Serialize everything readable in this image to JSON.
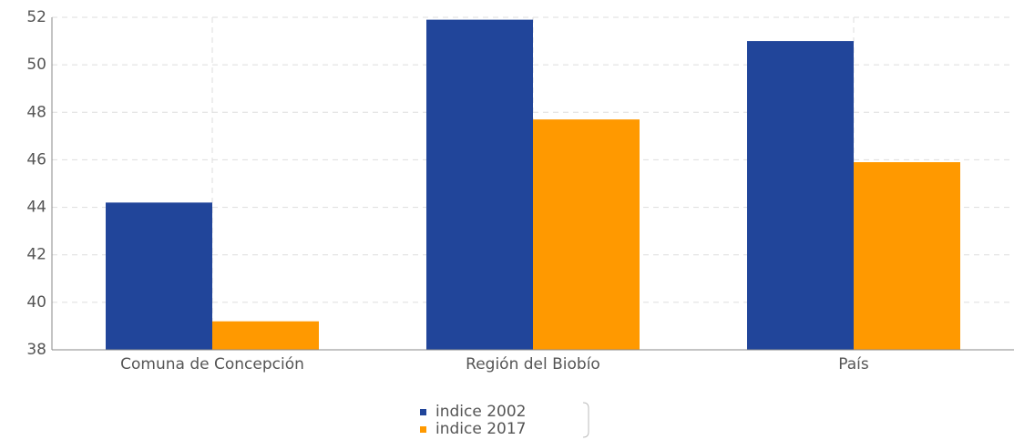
{
  "chart_data": {
    "type": "bar",
    "categories": [
      "Comuna de Concepción",
      "Región del Biobío",
      "País"
    ],
    "series": [
      {
        "name": "indice 2002",
        "color": "#21459a",
        "values": [
          44.2,
          51.9,
          51.0
        ]
      },
      {
        "name": "indice 2017",
        "color": "#ff9900",
        "values": [
          39.2,
          47.7,
          45.9
        ]
      }
    ],
    "ylim": [
      38,
      52
    ],
    "yticks": [
      38,
      40,
      42,
      44,
      46,
      48,
      50,
      52
    ],
    "grid": true
  }
}
